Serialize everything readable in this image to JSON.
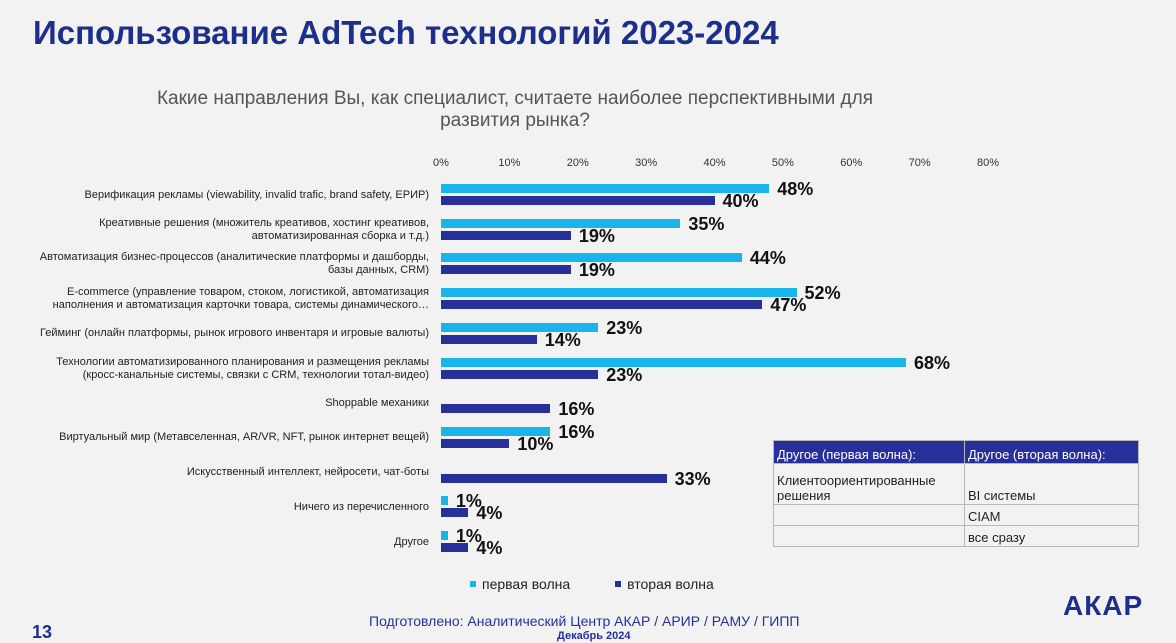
{
  "page": {
    "title": "Использование AdTech технологий 2023-2024",
    "subtitle": "Какие направления Вы, как специалист, считаете наиболее перспективными для развития рынка?",
    "page_number": "13",
    "logo": "АКАР",
    "footer_line1": "Подготовлено: Аналитический Центр АКАР / АРИР / РАМУ / ГИПП",
    "footer_line2": "Декабрь 2024"
  },
  "colors": {
    "first_wave": "#19b4ea",
    "second_wave": "#27309a",
    "title": "#1c2f8a"
  },
  "chart_data": {
    "type": "bar",
    "orientation": "horizontal",
    "title": "Какие направления Вы, как специалист, считаете наиболее перспективными для развития рынка?",
    "xlabel": "",
    "ylabel": "",
    "xlim": [
      0,
      80
    ],
    "ticks": [
      "0%",
      "10%",
      "20%",
      "30%",
      "40%",
      "50%",
      "60%",
      "70%",
      "80%"
    ],
    "legend_position": "bottom",
    "categories": [
      [
        "Верификация рекламы (viewability, invalid trafic, brand safety, ЕРИР)"
      ],
      [
        "Креативные решения (множитель креативов, хостинг креативов,",
        "автоматизированная сборка и т.д.)"
      ],
      [
        "Автоматизация бизнес-процессов (аналитические платформы и дашборды,",
        "базы данных, CRM)"
      ],
      [
        "E-commerce (управление товаром, стоком, логистикой, автоматизация",
        "наполнения и автоматизация карточки товара, системы динамического…"
      ],
      [
        "Гейминг (онлайн платформы, рынок игрового инвентаря и игровые валюты)"
      ],
      [
        "Технологии автоматизированного планирования и размещения рекламы",
        "(кросс-канальные системы, связки с CRM, технологии тотал-видео)"
      ],
      [
        "Shoppable механики"
      ],
      [
        "Виртуальный мир (Метавселенная, AR/VR, NFT, рынок интернет вещей)"
      ],
      [
        "Искусственный интеллект, нейросети, чат-боты"
      ],
      [
        "Ничего из перечисленного"
      ],
      [
        "Другое"
      ]
    ],
    "series": [
      {
        "name": "первая волна",
        "values": [
          48,
          35,
          44,
          52,
          23,
          68,
          null,
          16,
          null,
          1,
          1
        ],
        "labels": [
          "48%",
          "35%",
          "44%",
          "52%",
          "23%",
          "68%",
          null,
          "16%",
          null,
          "1%",
          "1%"
        ]
      },
      {
        "name": "вторая волна",
        "values": [
          40,
          19,
          19,
          47,
          14,
          23,
          16,
          10,
          33,
          4,
          4
        ],
        "labels": [
          "40%",
          "19%",
          "19%",
          "47%",
          "14%",
          "23%",
          "16%",
          "10%",
          "33%",
          "4%",
          "4%"
        ]
      }
    ]
  },
  "other_table": {
    "headers": [
      "Другое (первая волна):",
      "Другое (вторая волна):"
    ],
    "rows": [
      [
        "Клиентоориентированные решения",
        "BI системы"
      ],
      [
        "",
        "CIAM"
      ],
      [
        "",
        "все сразу"
      ]
    ]
  }
}
